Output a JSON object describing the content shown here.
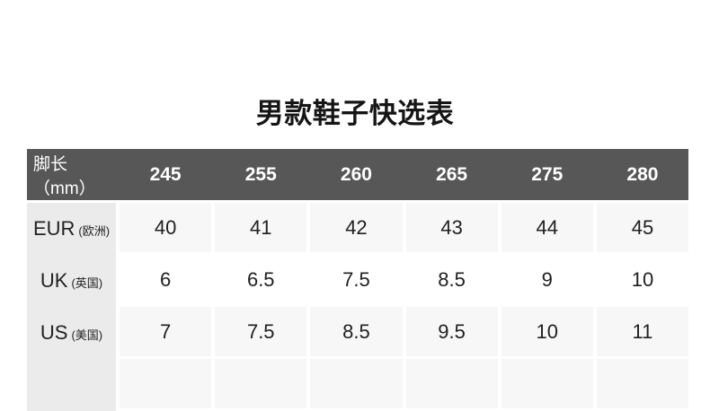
{
  "page": {
    "title": "男款鞋子快选表"
  },
  "colors": {
    "header_bg": "#575757",
    "header_text": "#ffffff",
    "label_column_bg": "#ebebeb",
    "shaded_cell_bg": "#f7f7f8",
    "white_cell_bg": "#ffffff",
    "body_text": "#1f1f1f",
    "title_text": "#151515"
  },
  "table": {
    "header": {
      "label": "脚长（mm）",
      "columns": [
        "245",
        "255",
        "260",
        "265",
        "275",
        "280"
      ]
    },
    "rows": [
      {
        "standard": "EUR",
        "region": "(欧洲)",
        "values": [
          "40",
          "41",
          "42",
          "43",
          "44",
          "45"
        ]
      },
      {
        "standard": "UK",
        "region": "(英国)",
        "values": [
          "6",
          "6.5",
          "7.5",
          "8.5",
          "9",
          "10"
        ]
      },
      {
        "standard": "US",
        "region": "(美国)",
        "values": [
          "7",
          "7.5",
          "8.5",
          "9.5",
          "10",
          "11"
        ]
      }
    ]
  }
}
